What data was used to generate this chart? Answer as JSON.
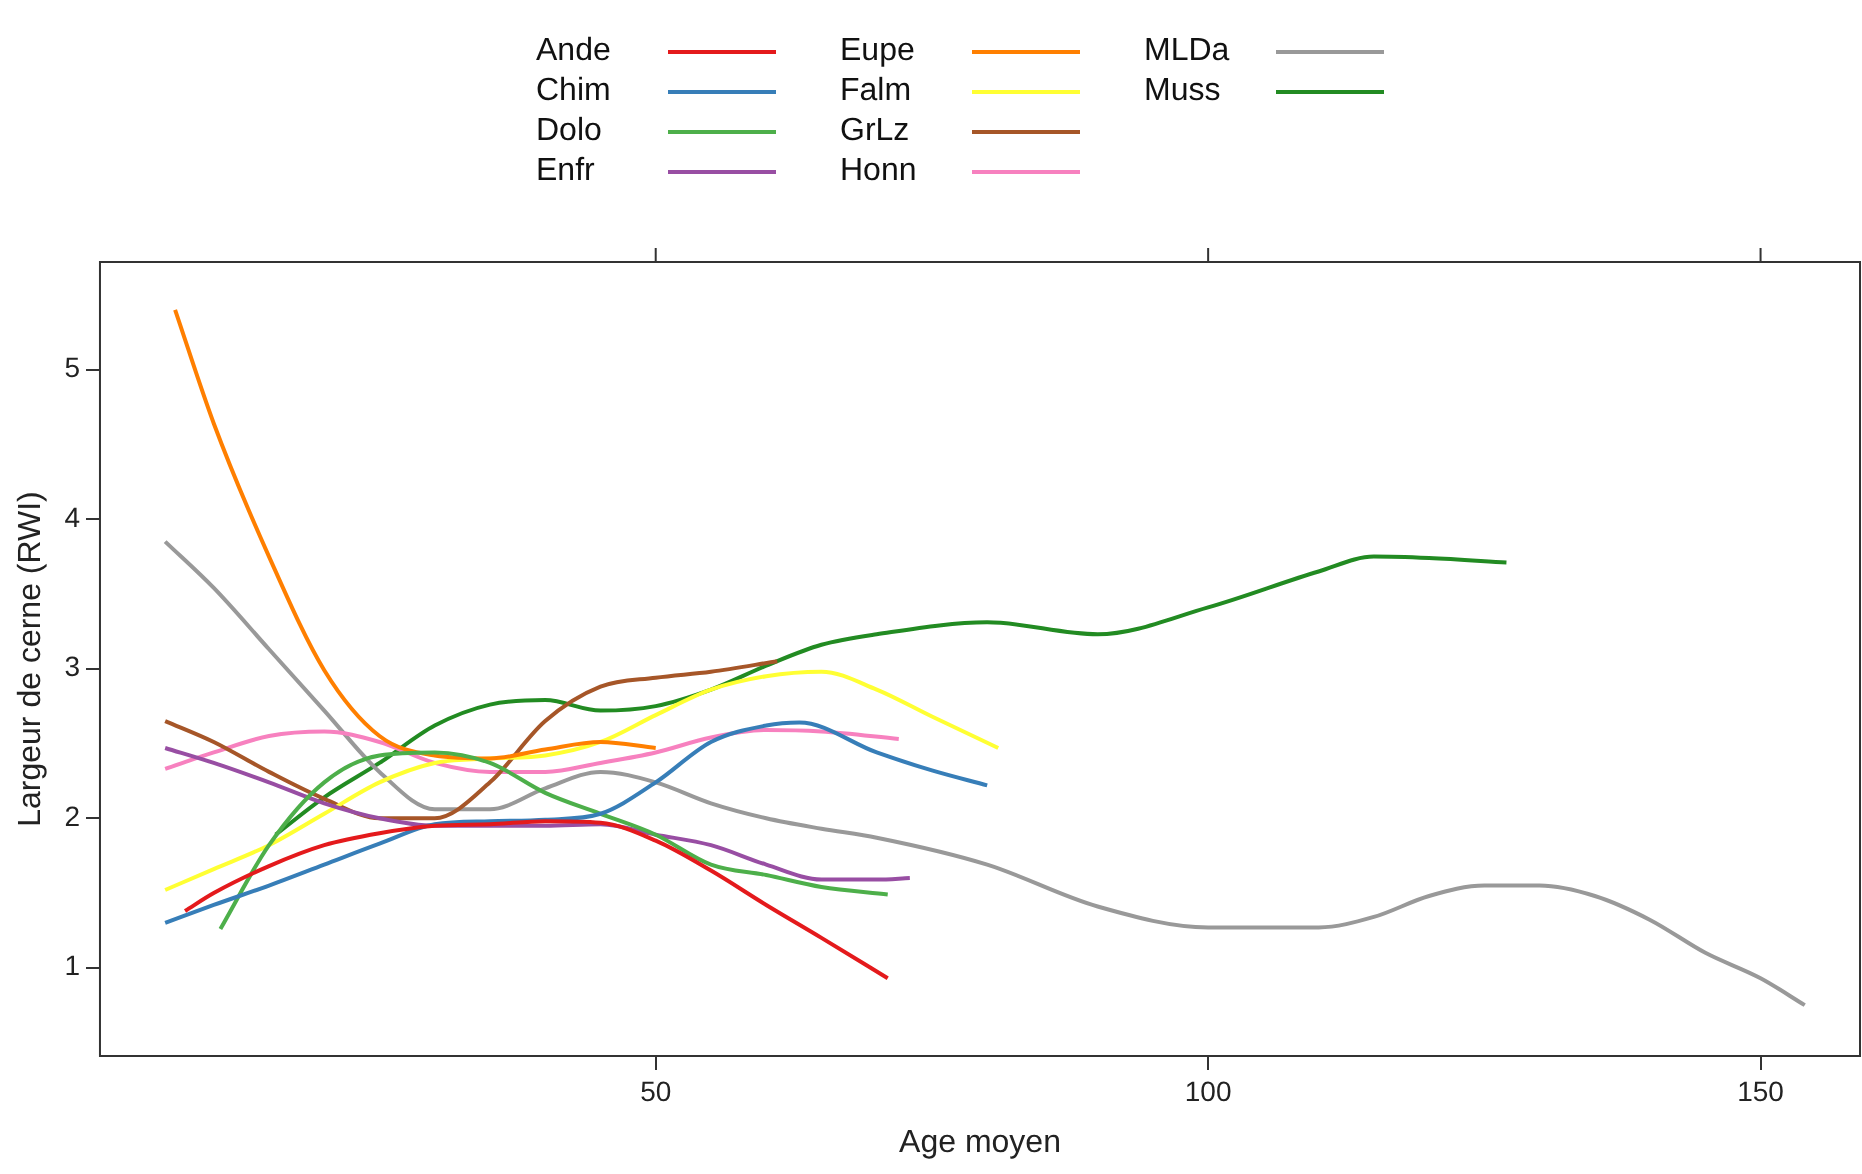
{
  "chart_data": {
    "type": "line",
    "xlabel": "Age moyen",
    "ylabel": "Largeur de cerne (RWI)",
    "xlim": [
      -0.3,
      159
    ],
    "ylim": [
      0.41,
      5.72
    ],
    "xticks": [
      50,
      100,
      150
    ],
    "yticks": [
      1,
      2,
      3,
      4,
      5
    ],
    "grid": false,
    "legend": "top",
    "marker": "none",
    "line_style": "solid",
    "series": [
      {
        "name": "Ande",
        "color": "#e41a1c",
        "x": [
          7.4,
          10,
          15,
          20,
          25,
          30,
          35,
          40,
          45,
          50,
          55,
          60,
          65,
          71
        ],
        "values": [
          1.38,
          1.5,
          1.68,
          1.82,
          1.9,
          1.95,
          1.96,
          1.98,
          1.97,
          1.85,
          1.65,
          1.42,
          1.2,
          0.93
        ]
      },
      {
        "name": "Chim",
        "color": "#377eb8",
        "x": [
          5.6,
          10,
          15,
          20,
          25,
          30,
          35,
          40,
          45,
          50,
          55,
          60,
          63,
          70,
          75,
          80
        ],
        "values": [
          1.3,
          1.42,
          1.55,
          1.69,
          1.83,
          1.96,
          1.98,
          1.99,
          2.03,
          2.24,
          2.51,
          2.62,
          2.64,
          2.44,
          2.32,
          2.22
        ]
      },
      {
        "name": "Dolo",
        "color": "#4daf4a",
        "x": [
          10.6,
          15,
          20,
          25,
          30,
          35,
          40,
          45,
          50,
          55,
          60,
          65,
          71
        ],
        "values": [
          1.26,
          1.82,
          2.24,
          2.42,
          2.44,
          2.37,
          2.17,
          2.03,
          1.89,
          1.69,
          1.62,
          1.54,
          1.49
        ]
      },
      {
        "name": "Enfr",
        "color": "#984ea3",
        "x": [
          5.6,
          10,
          15,
          20,
          25,
          30,
          35,
          40,
          45,
          50,
          55,
          60,
          65,
          70,
          73
        ],
        "values": [
          2.47,
          2.37,
          2.24,
          2.1,
          2.0,
          1.95,
          1.95,
          1.95,
          1.96,
          1.89,
          1.82,
          1.69,
          1.59,
          1.59,
          1.6
        ]
      },
      {
        "name": "Eupe",
        "color": "#ff7f00",
        "x": [
          6.5,
          10,
          15,
          20,
          25,
          30,
          35,
          40,
          45,
          50
        ],
        "values": [
          5.4,
          4.64,
          3.75,
          2.99,
          2.55,
          2.42,
          2.4,
          2.46,
          2.51,
          2.47
        ]
      },
      {
        "name": "Falm",
        "color": "#ffff33",
        "x": [
          5.6,
          10,
          15,
          20,
          25,
          30,
          35,
          40,
          45,
          50,
          55,
          60,
          65,
          70,
          75,
          81
        ],
        "values": [
          1.52,
          1.66,
          1.82,
          2.03,
          2.24,
          2.37,
          2.4,
          2.42,
          2.51,
          2.69,
          2.86,
          2.95,
          2.98,
          2.86,
          2.68,
          2.47
        ]
      },
      {
        "name": "GrLz",
        "color": "#a65628",
        "x": [
          5.6,
          10,
          15,
          20,
          25,
          30,
          35,
          40,
          45,
          50,
          55,
          61
        ],
        "values": [
          2.65,
          2.51,
          2.31,
          2.13,
          2.0,
          2.0,
          2.24,
          2.65,
          2.88,
          2.94,
          2.98,
          3.05
        ]
      },
      {
        "name": "Honn",
        "color": "#f781bf",
        "x": [
          5.6,
          10,
          15,
          20,
          25,
          30,
          35,
          40,
          45,
          50,
          55,
          60,
          65,
          72
        ],
        "values": [
          2.33,
          2.44,
          2.55,
          2.58,
          2.51,
          2.37,
          2.31,
          2.31,
          2.37,
          2.44,
          2.54,
          2.59,
          2.58,
          2.53
        ]
      },
      {
        "name": "MLDa",
        "color": "#999999",
        "x": [
          5.6,
          10,
          15,
          20,
          25,
          30,
          35,
          40,
          45,
          50,
          55,
          60,
          65,
          70,
          80,
          90,
          100,
          110,
          115,
          120,
          125,
          130,
          135,
          140,
          145,
          150,
          154
        ],
        "values": [
          3.85,
          3.54,
          3.13,
          2.72,
          2.31,
          2.06,
          2.06,
          2.2,
          2.31,
          2.24,
          2.1,
          2.0,
          1.93,
          1.87,
          1.69,
          1.41,
          1.27,
          1.27,
          1.34,
          1.48,
          1.55,
          1.55,
          1.48,
          1.32,
          1.1,
          0.93,
          0.75
        ]
      },
      {
        "name": "Muss",
        "color": "#228b22",
        "x": [
          15.6,
          20,
          25,
          30,
          35,
          40,
          45,
          50,
          55,
          60,
          65,
          70,
          80,
          90,
          100,
          110,
          115,
          120,
          127
        ],
        "values": [
          1.89,
          2.14,
          2.37,
          2.62,
          2.76,
          2.79,
          2.72,
          2.75,
          2.86,
          3.02,
          3.16,
          3.23,
          3.31,
          3.23,
          3.41,
          3.65,
          3.75,
          3.74,
          3.71
        ]
      }
    ]
  }
}
